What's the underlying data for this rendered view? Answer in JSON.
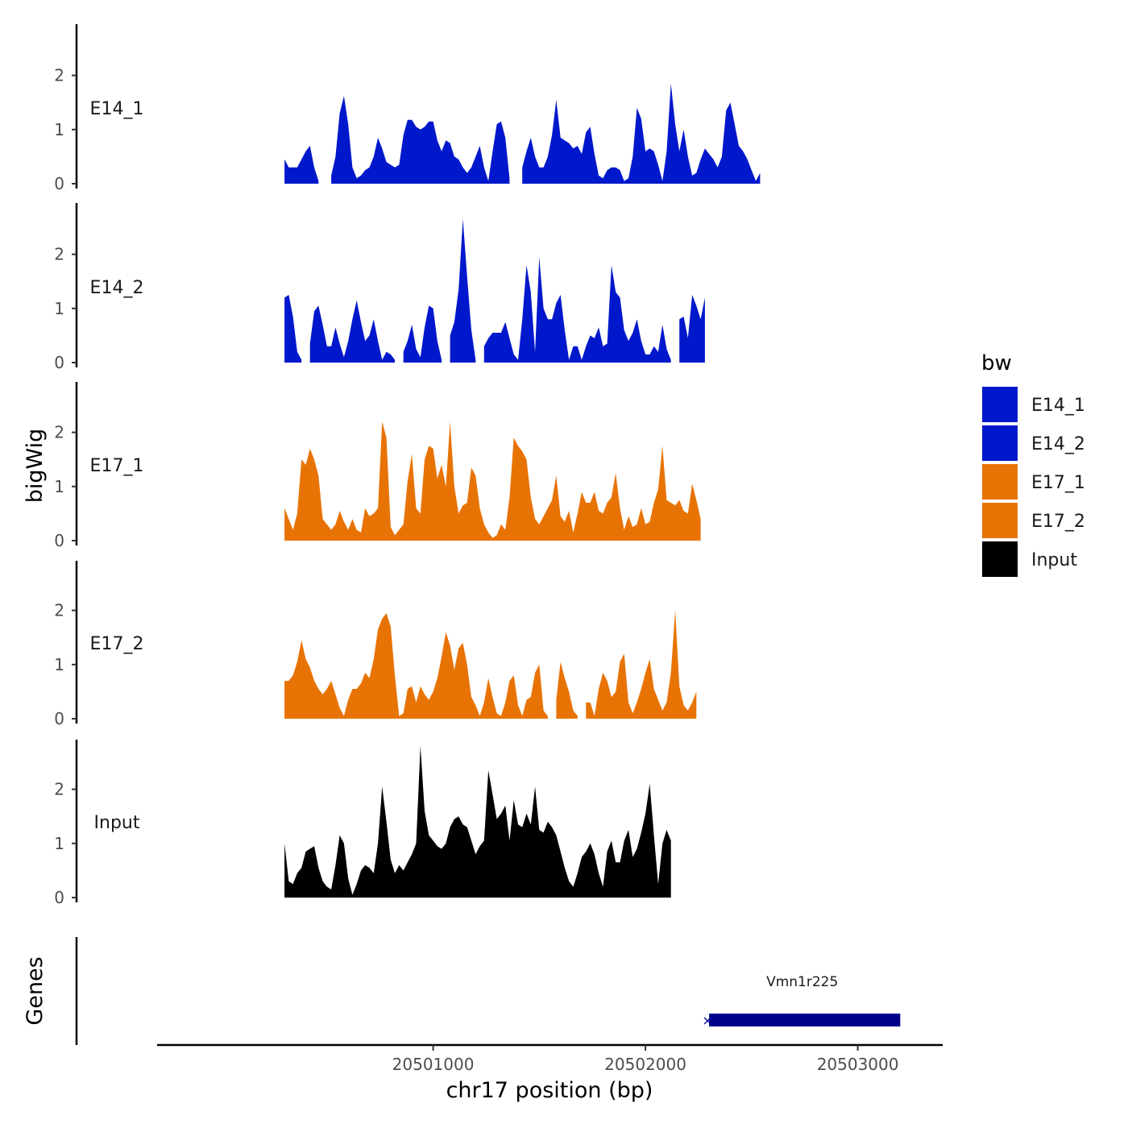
{
  "chart_data": {
    "type": "area",
    "xlabel": "chr17 position (bp)",
    "ylabel": "bigWig",
    "genes_label": "Genes",
    "xlim": [
      20499700,
      20503400
    ],
    "ylim": [
      0,
      2.9
    ],
    "x_ticks": [
      {
        "value": 20501000,
        "label": "20501000"
      },
      {
        "value": 20502000,
        "label": "20502000"
      },
      {
        "value": 20503000,
        "label": "20503000"
      }
    ],
    "y_ticks": [
      {
        "value": 0,
        "label": "0"
      },
      {
        "value": 1,
        "label": "1"
      },
      {
        "value": 2,
        "label": "2"
      }
    ],
    "x_start": 20500300,
    "x_step": 20,
    "legend": {
      "title": "bw",
      "entries": [
        {
          "name": "E14_1",
          "color": "#0018CC"
        },
        {
          "name": "E14_2",
          "color": "#0018CC"
        },
        {
          "name": "E17_1",
          "color": "#E87305"
        },
        {
          "name": "E17_2",
          "color": "#E87305"
        },
        {
          "name": "Input",
          "color": "#000000"
        }
      ]
    },
    "series": [
      {
        "name": "E14_1",
        "color": "#0018CC",
        "values": [
          0.45,
          0.3,
          0.3,
          0.3,
          0.45,
          0.6,
          0.7,
          0.3,
          0.05,
          null,
          null,
          0.15,
          0.5,
          1.3,
          1.62,
          1.1,
          0.3,
          0.1,
          0.15,
          0.25,
          0.3,
          0.5,
          0.85,
          0.65,
          0.4,
          0.35,
          0.3,
          0.35,
          0.9,
          1.18,
          1.18,
          1.05,
          1.0,
          1.05,
          1.15,
          1.15,
          0.8,
          0.6,
          0.8,
          0.75,
          0.5,
          0.45,
          0.3,
          0.2,
          0.3,
          0.5,
          0.7,
          0.3,
          0.05,
          0.6,
          1.1,
          1.15,
          0.85,
          0.1,
          null,
          null,
          0.3,
          0.6,
          0.85,
          0.5,
          0.3,
          0.3,
          0.5,
          0.9,
          1.55,
          0.85,
          0.8,
          0.75,
          0.65,
          0.7,
          0.55,
          0.95,
          1.05,
          0.55,
          0.15,
          0.1,
          0.25,
          0.3,
          0.3,
          0.25,
          0.05,
          0.1,
          0.5,
          1.4,
          1.2,
          0.6,
          0.65,
          0.6,
          0.35,
          0.05,
          0.6,
          1.85,
          1.1,
          0.6,
          1.0,
          0.5,
          0.15,
          0.2,
          0.45,
          0.65,
          0.55,
          0.45,
          0.3,
          0.5,
          1.35,
          1.5,
          1.1,
          0.7,
          0.6,
          0.45,
          0.25,
          0.05,
          0.2
        ],
        "gaps_note": "values null = no signal"
      },
      {
        "name": "E14_2",
        "color": "#0018CC",
        "values": [
          1.2,
          1.25,
          0.85,
          0.2,
          0.05,
          null,
          0.35,
          0.95,
          1.05,
          0.7,
          0.3,
          0.3,
          0.65,
          0.35,
          0.1,
          0.4,
          0.8,
          1.15,
          0.75,
          0.4,
          0.5,
          0.8,
          0.4,
          0.05,
          0.2,
          0.15,
          0.05,
          null,
          0.2,
          0.4,
          0.7,
          0.25,
          0.1,
          0.65,
          1.05,
          1.0,
          0.4,
          0.05,
          null,
          0.5,
          0.75,
          1.35,
          2.65,
          1.6,
          0.6,
          0.05,
          null,
          0.3,
          0.45,
          0.55,
          0.55,
          0.55,
          0.75,
          0.45,
          0.15,
          0.05,
          0.8,
          1.8,
          1.3,
          0.2,
          1.95,
          1.0,
          0.8,
          0.8,
          1.1,
          1.25,
          0.6,
          0.05,
          0.3,
          0.3,
          0.05,
          0.3,
          0.5,
          0.45,
          0.65,
          0.3,
          0.35,
          1.8,
          1.3,
          1.2,
          0.6,
          0.4,
          0.55,
          0.8,
          0.4,
          0.15,
          0.15,
          0.3,
          0.2,
          0.7,
          0.25,
          0.05,
          null,
          0.8,
          0.85,
          0.45,
          1.25,
          1.05,
          0.8,
          1.2
        ],
        "gaps_note": "values null = no signal"
      },
      {
        "name": "E17_1",
        "color": "#E87305",
        "values": [
          0.6,
          0.4,
          0.2,
          0.5,
          1.5,
          1.4,
          1.7,
          1.5,
          1.2,
          0.4,
          0.3,
          0.2,
          0.3,
          0.55,
          0.35,
          0.2,
          0.4,
          0.2,
          0.15,
          0.6,
          0.45,
          0.5,
          0.6,
          2.2,
          1.9,
          0.25,
          0.1,
          0.2,
          0.3,
          1.1,
          1.6,
          0.6,
          0.5,
          1.5,
          1.75,
          1.7,
          1.15,
          1.4,
          1.0,
          2.2,
          1.0,
          0.5,
          0.65,
          0.7,
          1.35,
          1.2,
          0.6,
          0.3,
          0.15,
          0.05,
          0.1,
          0.3,
          0.2,
          0.8,
          1.9,
          1.75,
          1.65,
          1.5,
          0.8,
          0.4,
          0.3,
          0.45,
          0.6,
          0.75,
          1.2,
          0.45,
          0.35,
          0.55,
          0.15,
          0.5,
          0.9,
          0.7,
          0.7,
          0.9,
          0.55,
          0.5,
          0.7,
          0.8,
          1.25,
          0.6,
          0.2,
          0.45,
          0.25,
          0.3,
          0.6,
          0.3,
          0.35,
          0.7,
          0.95,
          1.75,
          0.75,
          0.7,
          0.65,
          0.75,
          0.55,
          0.5,
          1.05,
          0.75,
          0.4
        ],
        "gaps_note": "values null = no signal"
      },
      {
        "name": "E17_2",
        "color": "#E87305",
        "values": [
          0.7,
          0.7,
          0.8,
          1.05,
          1.45,
          1.1,
          0.95,
          0.7,
          0.55,
          0.45,
          0.55,
          0.7,
          0.45,
          0.2,
          0.05,
          0.35,
          0.55,
          0.55,
          0.65,
          0.85,
          0.75,
          1.1,
          1.65,
          1.85,
          1.95,
          1.7,
          0.8,
          0.05,
          0.1,
          0.55,
          0.6,
          0.3,
          0.6,
          0.45,
          0.35,
          0.5,
          0.75,
          1.15,
          1.6,
          1.35,
          0.9,
          1.3,
          1.4,
          1.0,
          0.4,
          0.25,
          0.05,
          0.3,
          0.75,
          0.4,
          0.1,
          0.05,
          0.3,
          0.7,
          0.8,
          0.25,
          0.05,
          0.35,
          0.4,
          0.85,
          1.0,
          0.15,
          0.05,
          null,
          0.35,
          1.05,
          0.75,
          0.5,
          0.15,
          0.05,
          null,
          0.3,
          0.3,
          0.05,
          0.55,
          0.85,
          0.7,
          0.4,
          0.5,
          1.05,
          1.2,
          0.3,
          0.1,
          0.3,
          0.55,
          0.85,
          1.1,
          0.55,
          0.35,
          0.15,
          0.3,
          0.85,
          2.0,
          0.6,
          0.25,
          0.15,
          0.3,
          0.5
        ],
        "gaps_note": "values null = no signal"
      },
      {
        "name": "Input",
        "color": "#000000",
        "values": [
          1.0,
          0.3,
          0.25,
          0.45,
          0.55,
          0.85,
          0.9,
          0.95,
          0.55,
          0.3,
          0.2,
          0.15,
          0.6,
          1.15,
          1.0,
          0.35,
          0.05,
          0.25,
          0.5,
          0.6,
          0.55,
          0.45,
          1.0,
          2.05,
          1.4,
          0.7,
          0.45,
          0.6,
          0.5,
          0.65,
          0.8,
          1.0,
          2.8,
          1.6,
          1.15,
          1.05,
          0.95,
          0.9,
          1.0,
          1.3,
          1.45,
          1.5,
          1.35,
          1.3,
          1.05,
          0.8,
          0.95,
          1.05,
          2.35,
          1.9,
          1.45,
          1.55,
          1.7,
          1.05,
          1.8,
          1.35,
          1.3,
          1.55,
          1.35,
          2.05,
          1.25,
          1.2,
          1.4,
          1.3,
          1.15,
          0.85,
          0.55,
          0.3,
          0.2,
          0.45,
          0.75,
          0.85,
          1.0,
          0.8,
          0.45,
          0.2,
          0.85,
          1.05,
          0.65,
          0.65,
          1.05,
          1.25,
          0.75,
          0.9,
          1.2,
          1.55,
          2.1,
          1.15,
          0.25,
          1.0,
          1.25,
          1.05
        ]
      }
    ],
    "gene": {
      "name": "Vmn1r225",
      "start": 20502300,
      "end": 20503200,
      "color": "#00008B"
    }
  }
}
